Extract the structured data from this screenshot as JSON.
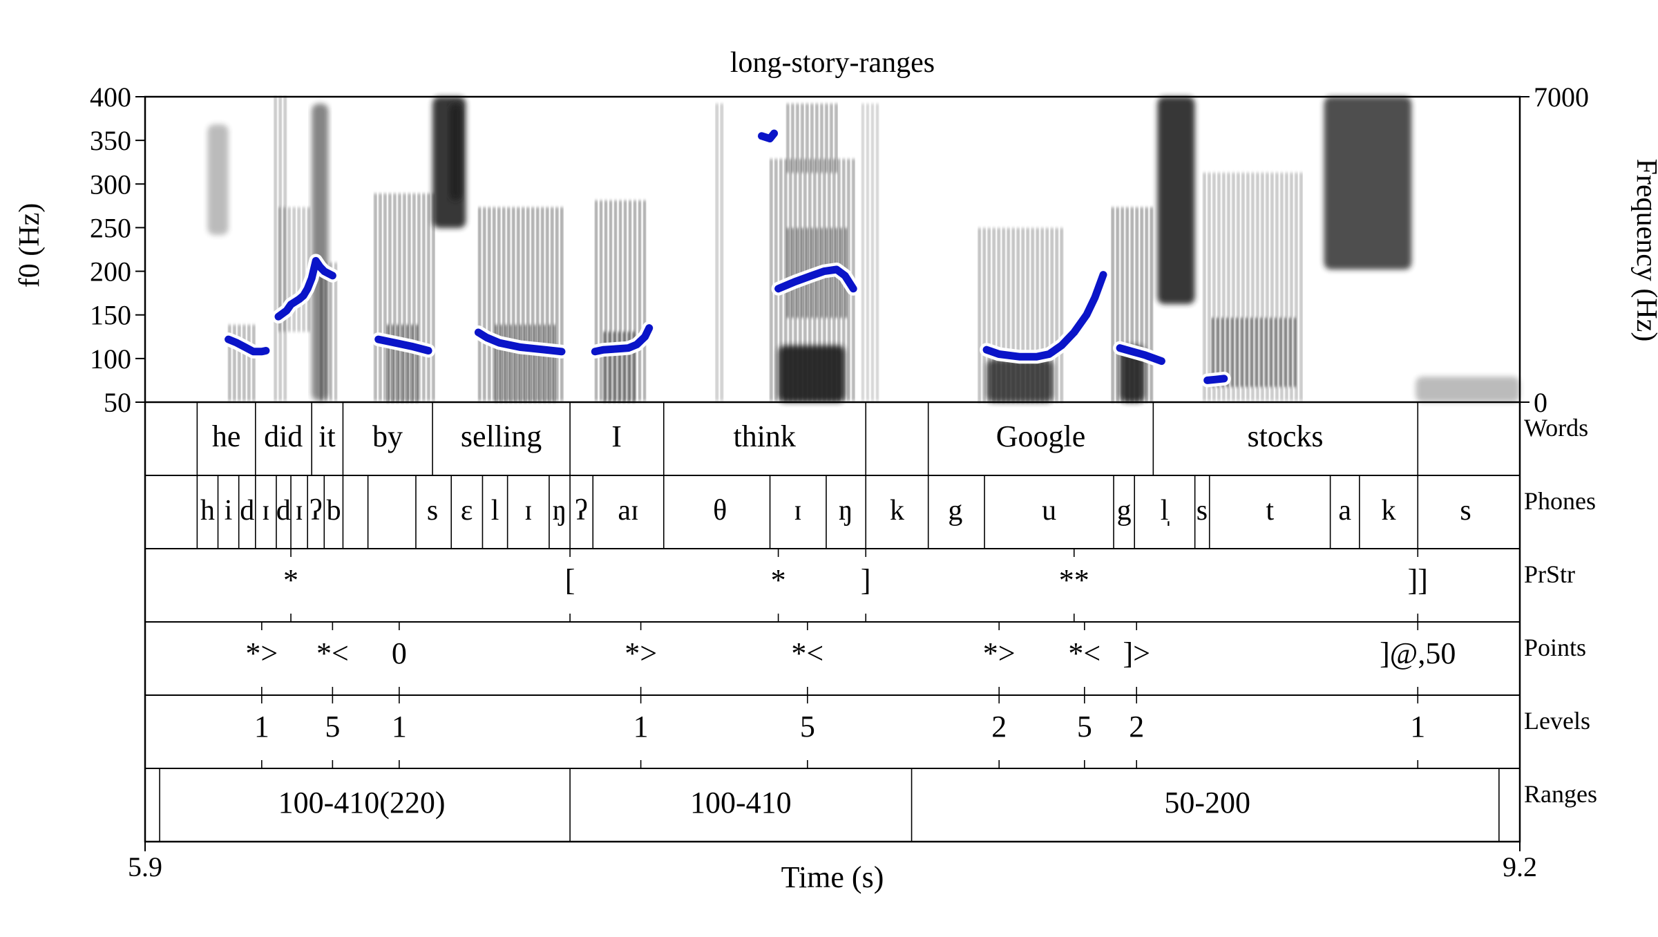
{
  "chart_data": {
    "type": "line",
    "title": "long-story-ranges",
    "xlabel": "Time (s)",
    "ylabel": "f0 (Hz)",
    "ylabel_right": "Frequency (Hz)",
    "xlim": [
      5.9,
      9.2
    ],
    "ylim": [
      50,
      400
    ],
    "ylim_right": [
      0,
      7000
    ],
    "x_tick_labels": [
      "5.9",
      "9.2"
    ],
    "y_ticks": [
      50,
      100,
      150,
      200,
      250,
      300,
      350,
      400
    ],
    "y_tick_labels": [
      "50",
      "100",
      "150",
      "200",
      "250",
      "300",
      "350",
      "400"
    ],
    "y_right_tick_labels": [
      "0",
      "7000"
    ],
    "series": [
      {
        "color": "#0a14c8",
        "points": [
          [
            6.1,
            122
          ],
          [
            6.12,
            118
          ],
          [
            6.14,
            113
          ],
          [
            6.16,
            108
          ],
          [
            6.18,
            108
          ],
          [
            6.19,
            109
          ]
        ]
      },
      {
        "color": "#0a14c8",
        "points": [
          [
            6.22,
            148
          ],
          [
            6.24,
            155
          ],
          [
            6.25,
            162
          ],
          [
            6.27,
            168
          ],
          [
            6.28,
            172
          ],
          [
            6.29,
            180
          ],
          [
            6.3,
            192
          ],
          [
            6.31,
            212
          ],
          [
            6.32,
            205
          ],
          [
            6.33,
            200
          ],
          [
            6.35,
            195
          ]
        ]
      },
      {
        "color": "#0a14c8",
        "points": [
          [
            6.46,
            122
          ],
          [
            6.5,
            118
          ],
          [
            6.54,
            114
          ],
          [
            6.58,
            109
          ]
        ]
      },
      {
        "color": "#0a14c8",
        "points": [
          [
            6.7,
            130
          ],
          [
            6.72,
            124
          ],
          [
            6.75,
            118
          ],
          [
            6.8,
            113
          ],
          [
            6.86,
            110
          ],
          [
            6.9,
            108
          ]
        ]
      },
      {
        "color": "#0a14c8",
        "points": [
          [
            6.98,
            108
          ],
          [
            7.0,
            110
          ],
          [
            7.03,
            111
          ],
          [
            7.06,
            112
          ],
          [
            7.08,
            116
          ],
          [
            7.1,
            125
          ],
          [
            7.11,
            135
          ]
        ]
      },
      {
        "color": "#0a14c8",
        "points": [
          [
            7.38,
            355
          ],
          [
            7.4,
            352
          ],
          [
            7.41,
            358
          ]
        ]
      },
      {
        "color": "#0a14c8",
        "points": [
          [
            7.42,
            180
          ],
          [
            7.46,
            188
          ],
          [
            7.5,
            195
          ],
          [
            7.53,
            200
          ],
          [
            7.56,
            202
          ],
          [
            7.58,
            195
          ],
          [
            7.6,
            180
          ]
        ]
      },
      {
        "color": "#0a14c8",
        "points": [
          [
            7.92,
            110
          ],
          [
            7.95,
            105
          ],
          [
            8.0,
            102
          ],
          [
            8.04,
            102
          ],
          [
            8.07,
            105
          ],
          [
            8.1,
            115
          ],
          [
            8.13,
            130
          ],
          [
            8.16,
            150
          ],
          [
            8.18,
            170
          ],
          [
            8.2,
            196
          ]
        ]
      },
      {
        "color": "#0a14c8",
        "points": [
          [
            8.24,
            112
          ],
          [
            8.27,
            108
          ],
          [
            8.3,
            104
          ],
          [
            8.34,
            97
          ]
        ]
      },
      {
        "color": "#0a14c8",
        "points": [
          [
            8.45,
            75
          ],
          [
            8.47,
            76
          ],
          [
            8.49,
            77
          ]
        ]
      }
    ],
    "tiers": [
      {
        "name": "Words",
        "type": "interval",
        "boundaries": [
          6.025,
          6.165,
          6.3,
          6.375,
          6.59,
          6.92,
          7.145,
          7.63,
          7.78,
          8.32,
          8.955
        ],
        "labels": [
          {
            "t": 6.095,
            "text": "he"
          },
          {
            "t": 6.232,
            "text": "did"
          },
          {
            "t": 6.337,
            "text": "it"
          },
          {
            "t": 6.482,
            "text": "by"
          },
          {
            "t": 6.755,
            "text": "selling"
          },
          {
            "t": 7.032,
            "text": "I"
          },
          {
            "t": 7.387,
            "text": "think"
          },
          {
            "t": 8.05,
            "text": "Google"
          },
          {
            "t": 8.637,
            "text": "stocks"
          }
        ]
      },
      {
        "name": "Phones",
        "type": "interval",
        "boundaries": [
          6.025,
          6.075,
          6.125,
          6.165,
          6.215,
          6.25,
          6.29,
          6.33,
          6.375,
          6.435,
          6.55,
          6.635,
          6.71,
          6.77,
          6.87,
          6.92,
          6.975,
          7.145,
          7.4,
          7.535,
          7.63,
          7.78,
          7.915,
          8.225,
          8.275,
          8.42,
          8.455,
          8.745,
          8.815,
          8.955
        ],
        "labels": [
          {
            "t": 6.05,
            "text": "h"
          },
          {
            "t": 6.1,
            "text": "i"
          },
          {
            "t": 6.145,
            "text": "d"
          },
          {
            "t": 6.19,
            "text": "ɪ"
          },
          {
            "t": 6.232,
            "text": "d"
          },
          {
            "t": 6.27,
            "text": "ɪ"
          },
          {
            "t": 6.31,
            "text": "ʔ"
          },
          {
            "t": 6.353,
            "text": "b"
          },
          {
            "t": 6.59,
            "text": "s"
          },
          {
            "t": 6.672,
            "text": "ɛ"
          },
          {
            "t": 6.74,
            "text": "l"
          },
          {
            "t": 6.82,
            "text": "ɪ"
          },
          {
            "t": 6.895,
            "text": "ŋ"
          },
          {
            "t": 6.947,
            "text": "ʔ"
          },
          {
            "t": 7.06,
            "text": "aɪ"
          },
          {
            "t": 7.28,
            "text": "θ"
          },
          {
            "t": 7.467,
            "text": "ɪ"
          },
          {
            "t": 7.582,
            "text": "ŋ"
          },
          {
            "t": 7.705,
            "text": "k"
          },
          {
            "t": 7.845,
            "text": "g"
          },
          {
            "t": 8.07,
            "text": "u"
          },
          {
            "t": 8.25,
            "text": "g"
          },
          {
            "t": 8.347,
            "text": "l̩"
          },
          {
            "t": 8.437,
            "text": "s"
          },
          {
            "t": 8.6,
            "text": "t"
          },
          {
            "t": 8.78,
            "text": "a"
          },
          {
            "t": 8.885,
            "text": "k"
          },
          {
            "t": 9.07,
            "text": "s"
          }
        ]
      },
      {
        "name": "PrStr",
        "type": "point",
        "labels": [
          {
            "t": 6.25,
            "text": "*"
          },
          {
            "t": 6.92,
            "text": "["
          },
          {
            "t": 7.42,
            "text": "*"
          },
          {
            "t": 7.63,
            "text": "]"
          },
          {
            "t": 8.13,
            "text": "**"
          },
          {
            "t": 8.955,
            "text": "]]"
          }
        ]
      },
      {
        "name": "Points",
        "type": "point",
        "labels": [
          {
            "t": 6.18,
            "text": "*>"
          },
          {
            "t": 6.35,
            "text": "*<"
          },
          {
            "t": 6.51,
            "text": "0"
          },
          {
            "t": 7.09,
            "text": "*>"
          },
          {
            "t": 7.49,
            "text": "*<"
          },
          {
            "t": 7.95,
            "text": "*>"
          },
          {
            "t": 8.155,
            "text": "*<"
          },
          {
            "t": 8.28,
            "text": "]>"
          },
          {
            "t": 8.955,
            "text": "]@,50"
          }
        ]
      },
      {
        "name": "Levels",
        "type": "point",
        "labels": [
          {
            "t": 6.18,
            "text": "1"
          },
          {
            "t": 6.35,
            "text": "5"
          },
          {
            "t": 6.51,
            "text": "1"
          },
          {
            "t": 7.09,
            "text": "1"
          },
          {
            "t": 7.49,
            "text": "5"
          },
          {
            "t": 7.95,
            "text": "2"
          },
          {
            "t": 8.155,
            "text": "5"
          },
          {
            "t": 8.28,
            "text": "2"
          },
          {
            "t": 8.955,
            "text": "1"
          }
        ]
      },
      {
        "name": "Ranges",
        "type": "interval",
        "boundaries": [
          5.935,
          6.92,
          7.74,
          9.15
        ],
        "labels": [
          {
            "t": 6.42,
            "text": "100-410(220)"
          },
          {
            "t": 7.33,
            "text": "100-410"
          },
          {
            "t": 8.45,
            "text": "50-200"
          }
        ]
      }
    ]
  }
}
